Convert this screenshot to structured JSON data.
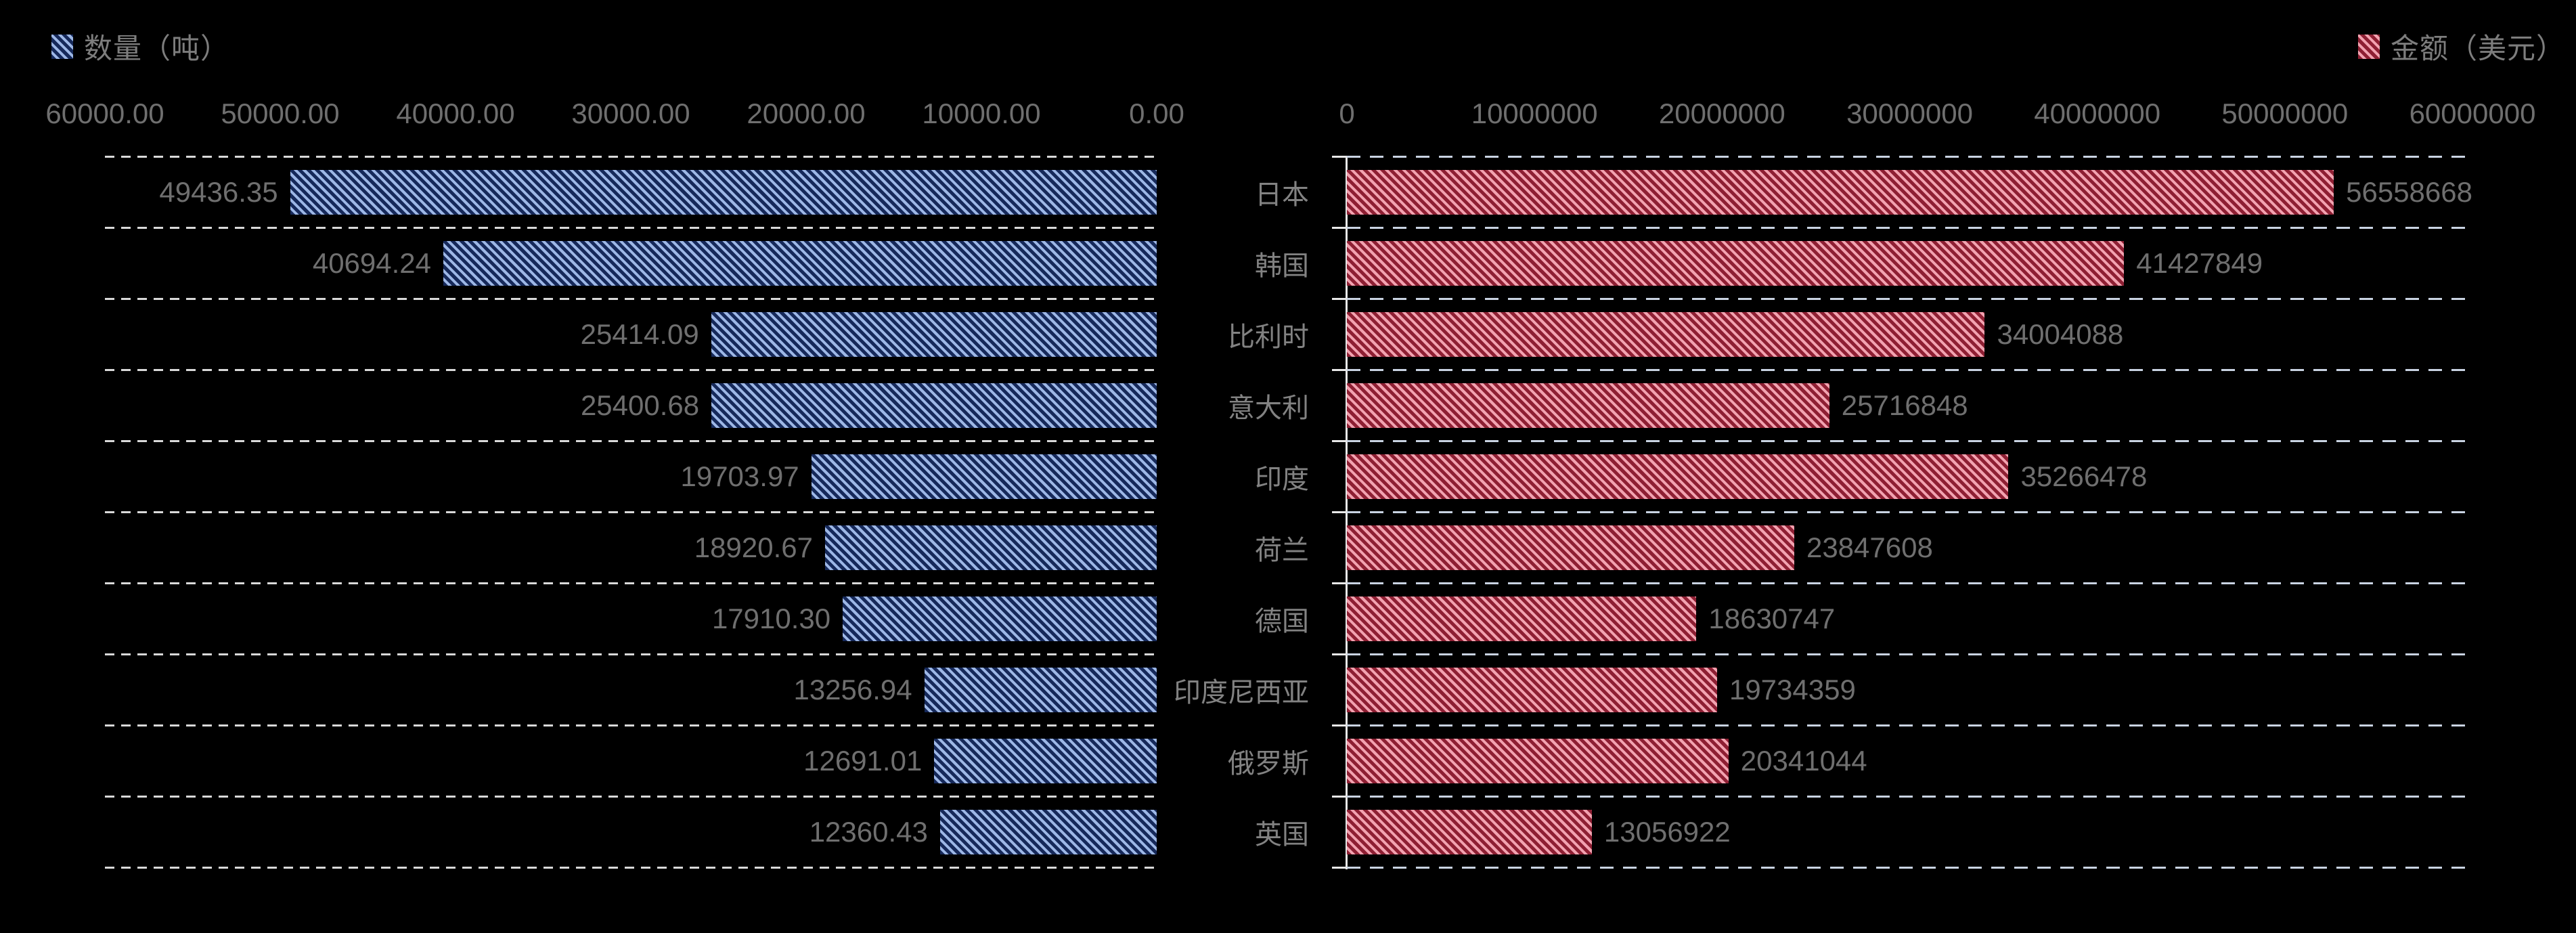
{
  "legend": {
    "left_label": "数量（吨）",
    "right_label": "金额（美元）"
  },
  "colors": {
    "background": "#000000",
    "quantity_bar_dark": "#16295a",
    "quantity_bar_stripe": "#9db7e6",
    "amount_bar_dark": "#8e1f33",
    "amount_bar_stripe": "#f2a2b0",
    "axis_text": "#6f6f6f",
    "category_text": "#828282",
    "grid_left_dash": "#d9d9d9",
    "grid_right_dash": "#c9d3e2",
    "right_axis_line": "#e8e8e8"
  },
  "chart_data": {
    "type": "bar",
    "orientation": "horizontal-bidirectional",
    "grid": "dashed horizontal row separators",
    "categories": [
      "日本",
      "韩国",
      "比利时",
      "意大利",
      "印度",
      "荷兰",
      "德国",
      "印度尼西亚",
      "俄罗斯",
      "英国"
    ],
    "series": [
      {
        "name": "数量（吨）",
        "side": "left",
        "axis_min": 0,
        "axis_max": 60000,
        "axis_reversed": true,
        "axis_ticks": [
          "60000.00",
          "50000.00",
          "40000.00",
          "30000.00",
          "20000.00",
          "10000.00",
          "0.00"
        ],
        "values": [
          49436.35,
          40694.24,
          25414.09,
          25400.68,
          19703.97,
          18920.67,
          17910.3,
          13256.94,
          12691.01,
          12360.43
        ],
        "value_labels": [
          "49436.35",
          "40694.24",
          "25414.09",
          "25400.68",
          "19703.97",
          "18920.67",
          "17910.30",
          "13256.94",
          "12691.01",
          "12360.43"
        ]
      },
      {
        "name": "金额（美元）",
        "side": "right",
        "axis_min": 0,
        "axis_max": 60000000,
        "axis_reversed": false,
        "axis_ticks": [
          "0",
          "10000000",
          "20000000",
          "30000000",
          "40000000",
          "50000000",
          "60000000"
        ],
        "values": [
          56558668,
          41427849,
          34004088,
          25716848,
          35266478,
          23847608,
          18630747,
          19734359,
          20341044,
          13056922
        ],
        "value_labels": [
          "56558668",
          "41427849",
          "34004088",
          "25716848",
          "35266478",
          "23847608",
          "18630747",
          "19734359",
          "20341044",
          "13056922"
        ]
      }
    ],
    "legend_position": "top-left (quantity), top-right (amount)"
  }
}
